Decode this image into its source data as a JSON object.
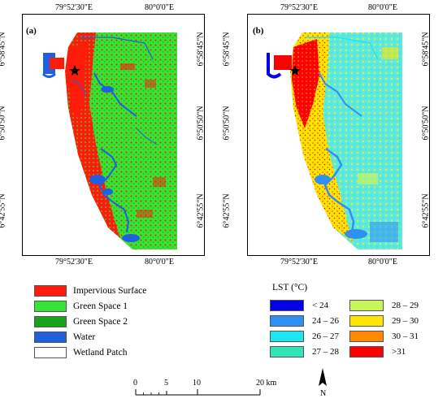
{
  "panels": [
    {
      "tag": "(a)",
      "top_labels": [
        "79°52'30\"E",
        "80°0'0\"E"
      ],
      "bottom_labels": [
        "79°52'30\"E",
        "80°0'0\"E"
      ],
      "left_labels": [
        "6°58'45\"N",
        "6°50'50\"N",
        "6°42'55\"N"
      ],
      "right_labels": [
        "6°58'45\"N",
        "6°50'50\"N",
        "6°42'55\"N"
      ]
    },
    {
      "tag": "(b)",
      "top_labels": [
        "79°52'30\"E",
        "80°0'0\"E"
      ],
      "bottom_labels": [
        "79°52'30\"E",
        "80°0'0\"E"
      ],
      "left_labels": [
        "6°58'45\"N",
        "6°50'50\"N",
        "6°42'55\"N"
      ],
      "right_labels": [
        "6°58'45\"N",
        "6°50'50\"N",
        "6°42'55\"N"
      ]
    }
  ],
  "landcover_legend": [
    {
      "label": "Impervious Surface",
      "color": "#ff1a0a"
    },
    {
      "label": "Green Space 1",
      "color": "#33e633"
    },
    {
      "label": "Green Space 2",
      "color": "#1aa31a"
    },
    {
      "label": "Water",
      "color": "#1f5fe0"
    },
    {
      "label": "Wetland Patch",
      "color": "#ffffff"
    }
  ],
  "lst_legend": {
    "title": "LST (°C)",
    "classes": [
      {
        "label": "< 24",
        "color": "#0000e6"
      },
      {
        "label": "24 – 26",
        "color": "#2e8ff5"
      },
      {
        "label": "26 – 27",
        "color": "#1ee6f0"
      },
      {
        "label": "27 – 28",
        "color": "#2fe6b4"
      },
      {
        "label": "28 – 29",
        "color": "#c8f55a"
      },
      {
        "label": "29 – 30",
        "color": "#ffe600"
      },
      {
        "label": "30 – 31",
        "color": "#ff8a00"
      },
      {
        "label": ">31",
        "color": "#ff0000"
      }
    ]
  },
  "scalebar": {
    "ticks": [
      "0",
      "5",
      "10",
      "20 km"
    ]
  },
  "north_arrow": {
    "label": "N",
    "icon": "north-arrow-icon"
  }
}
